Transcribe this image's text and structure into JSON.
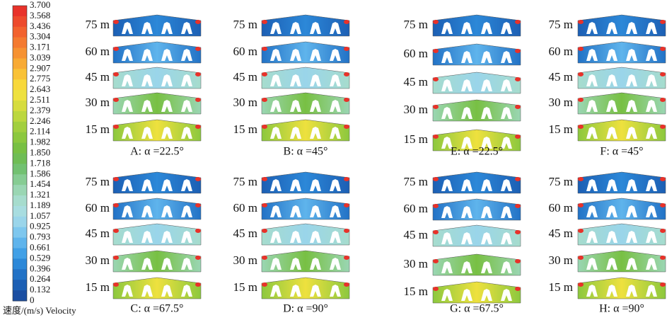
{
  "legend": {
    "title": "速度/(m/s) Velocity",
    "ticks": [
      "3.700",
      "3.568",
      "3.436",
      "3.304",
      "3.171",
      "3.039",
      "2.907",
      "2.775",
      "2.643",
      "2.511",
      "2.379",
      "2.246",
      "2.114",
      "1.982",
      "1.850",
      "1.718",
      "1.586",
      "1.454",
      "1.321",
      "1.189",
      "1.057",
      "0.925",
      "0.793",
      "0.661",
      "0.529",
      "0.396",
      "0.264",
      "0.132",
      "0"
    ]
  },
  "panels": [
    {
      "caption": "A: α =22.5°",
      "heights": [
        "75 m",
        "60 m",
        "45 m",
        "30 m",
        "15 m"
      ]
    },
    {
      "caption": "B: α =45°",
      "heights": [
        "75 m",
        "60 m",
        "45 m",
        "30 m",
        "15 m"
      ]
    },
    {
      "caption": "E: α =22.5°",
      "heights": [
        "75 m",
        "60 m",
        "45 m",
        "30 m",
        "15 m"
      ]
    },
    {
      "caption": "F: α =45°",
      "heights": [
        "75 m",
        "60 m",
        "45 m",
        "30 m",
        "15 m"
      ]
    },
    {
      "caption": "C: α =67.5°",
      "heights": [
        "75 m",
        "60 m",
        "45 m",
        "30 m",
        "15 m"
      ]
    },
    {
      "caption": "D: α =90°",
      "heights": [
        "75 m",
        "60 m",
        "45 m",
        "30 m",
        "15 m"
      ]
    },
    {
      "caption": "G: α =67.5°",
      "heights": [
        "75 m",
        "60 m",
        "45 m",
        "30 m",
        "15 m"
      ]
    },
    {
      "caption": "H: α =90°",
      "heights": [
        "75 m",
        "60 m",
        "45 m",
        "30 m",
        "15 m"
      ]
    }
  ]
}
